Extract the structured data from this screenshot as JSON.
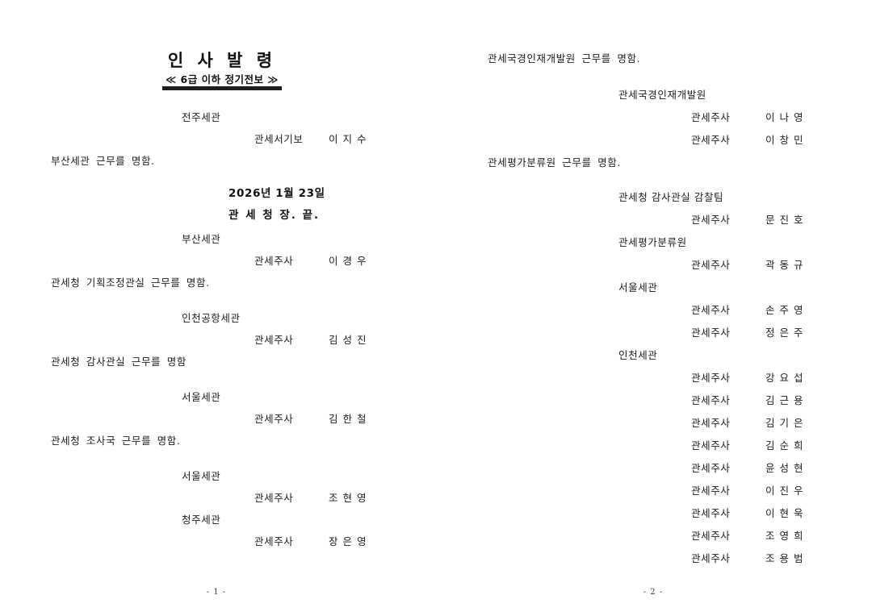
{
  "document": {
    "title": "인 사 발 령",
    "subtitle": "≪ 6급 이하 정기전보 ≫",
    "date": "2026년 1월 23일",
    "signer": "관 세 청 장.  끝.",
    "pages": [
      {
        "page_label": "- 1 -",
        "blocks": [
          {
            "type": "entry",
            "gap": "header",
            "lines": [
              {
                "kind": "office",
                "text": "전주세관"
              },
              {
                "kind": "appointment",
                "rank": "관세서기보",
                "name": "이 지 수"
              },
              {
                "kind": "sentence",
                "text": "부산세관 근무를 명함."
              }
            ]
          },
          {
            "type": "date_signature",
            "gap": "date"
          },
          {
            "type": "entry",
            "gap": "small",
            "lines": [
              {
                "kind": "office",
                "text": "부산세관"
              },
              {
                "kind": "appointment",
                "rank": "관세주사",
                "name": "이 경 우"
              },
              {
                "kind": "sentence",
                "text": "관세청 기획조정관실 근무를 명함."
              }
            ]
          },
          {
            "type": "entry",
            "gap": "section",
            "lines": [
              {
                "kind": "office",
                "text": "인천공항세관"
              },
              {
                "kind": "appointment",
                "rank": "관세주사",
                "name": "김 성 진"
              },
              {
                "kind": "sentence",
                "text": "관세청 감사관실 근무를 명함"
              }
            ]
          },
          {
            "type": "entry",
            "gap": "section",
            "lines": [
              {
                "kind": "office",
                "text": "서울세관"
              },
              {
                "kind": "appointment",
                "rank": "관세주사",
                "name": "김 한 철"
              },
              {
                "kind": "sentence",
                "text": "관세청 조사국 근무를 명함."
              }
            ]
          },
          {
            "type": "entry",
            "gap": "section",
            "lines": [
              {
                "kind": "office",
                "text": "서울세관"
              },
              {
                "kind": "appointment",
                "rank": "관세주사",
                "name": "조 현 영"
              }
            ]
          },
          {
            "type": "entry",
            "gap": "none",
            "lines": [
              {
                "kind": "office",
                "text": "청주세관"
              },
              {
                "kind": "appointment",
                "rank": "관세주사",
                "name": "장 은 영"
              }
            ]
          }
        ]
      },
      {
        "page_label": "- 2 -",
        "blocks": [
          {
            "type": "entry",
            "gap": "none",
            "lines": [
              {
                "kind": "sentence",
                "text": "관세국경인재개발원 근무를 명함."
              }
            ]
          },
          {
            "type": "entry",
            "gap": "section",
            "lines": [
              {
                "kind": "office",
                "text": "관세국경인재개발원"
              },
              {
                "kind": "appointment",
                "rank": "관세주사",
                "name": "이 나 영"
              },
              {
                "kind": "appointment",
                "rank": "관세주사",
                "name": "이 창 민"
              },
              {
                "kind": "sentence",
                "text": "관세평가분류원 근무를 명함."
              }
            ]
          },
          {
            "type": "entry",
            "gap": "section2",
            "lines": [
              {
                "kind": "office",
                "text": "관세청 감사관실 감찰팀"
              },
              {
                "kind": "appointment",
                "rank": "관세주사",
                "name": "문 진 호"
              },
              {
                "kind": "office",
                "text": "관세평가분류원"
              },
              {
                "kind": "appointment",
                "rank": "관세주사",
                "name": "곽 동 규"
              },
              {
                "kind": "office",
                "text": "서울세관"
              },
              {
                "kind": "appointment",
                "rank": "관세주사",
                "name": "손 주 영"
              },
              {
                "kind": "appointment",
                "rank": "관세주사",
                "name": "정 은 주"
              },
              {
                "kind": "office",
                "text": "인천세관"
              },
              {
                "kind": "appointment",
                "rank": "관세주사",
                "name": "강 요 섭"
              },
              {
                "kind": "appointment",
                "rank": "관세주사",
                "name": "김 근 용"
              },
              {
                "kind": "appointment",
                "rank": "관세주사",
                "name": "김 기 은"
              },
              {
                "kind": "appointment",
                "rank": "관세주사",
                "name": "김 순 희"
              },
              {
                "kind": "appointment",
                "rank": "관세주사",
                "name": "윤 성 현"
              },
              {
                "kind": "appointment",
                "rank": "관세주사",
                "name": "이 진 우"
              },
              {
                "kind": "appointment",
                "rank": "관세주사",
                "name": "이 현 욱"
              },
              {
                "kind": "appointment",
                "rank": "관세주사",
                "name": "조 영 희"
              },
              {
                "kind": "appointment",
                "rank": "관세주사",
                "name": "조 용 범"
              }
            ]
          }
        ]
      }
    ]
  }
}
